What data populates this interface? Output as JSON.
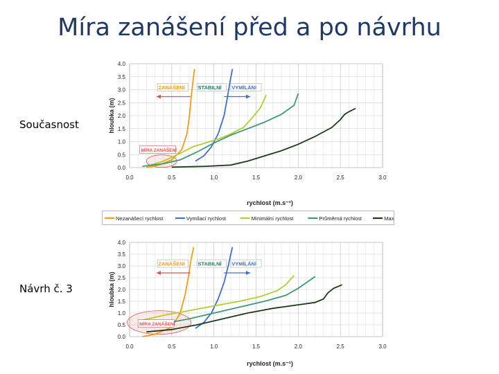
{
  "slide": {
    "title": "Míra zanášení před a po návrhu",
    "row1_label": "Současnost",
    "row2_label": "Návrh č. 3"
  },
  "colors": {
    "orange": "#f39c12",
    "blue": "#3a6fd8",
    "green": "#b5cc2e",
    "teal": "#3a9a72",
    "black": "#1a3a1a",
    "grid": "#c8c8c8",
    "zone": "#e05050"
  },
  "chart_data": [
    {
      "type": "line",
      "xlabel": "rychlost (m.s⁻¹)",
      "ylabel": "hloubka (m)",
      "xlim": [
        0,
        3.0
      ],
      "ylim": [
        0,
        4.0
      ],
      "x_ticks": [
        "0.0",
        "0.5",
        "1.0",
        "1.5",
        "2.0",
        "2.5",
        "3.0"
      ],
      "y_ticks": [
        "0.0",
        "0.5",
        "1.0",
        "1.5",
        "2.0",
        "2.5",
        "3.0",
        "3.5",
        "4.0"
      ],
      "grid": true,
      "annotations": {
        "zanaseni": "ZANÁŠENÍ",
        "stabilni": "STABILNÍ",
        "vymilani": "VYMÍLÁNÍ",
        "mira": "MÍRA ZANÁŠENÍ"
      },
      "series": [
        {
          "name": "Nezanášecí rychlost",
          "color_key": "orange",
          "points": [
            [
              0.2,
              0.0
            ],
            [
              0.35,
              0.1
            ],
            [
              0.5,
              0.3
            ],
            [
              0.62,
              0.7
            ],
            [
              0.68,
              1.3
            ],
            [
              0.71,
              2.0
            ],
            [
              0.73,
              2.7
            ],
            [
              0.75,
              3.3
            ],
            [
              0.77,
              3.8
            ]
          ]
        },
        {
          "name": "Vymílací rychlost",
          "color_key": "blue",
          "points": [
            [
              0.78,
              0.25
            ],
            [
              0.88,
              0.45
            ],
            [
              0.97,
              0.8
            ],
            [
              1.05,
              1.3
            ],
            [
              1.12,
              2.0
            ],
            [
              1.16,
              2.7
            ],
            [
              1.19,
              3.3
            ],
            [
              1.22,
              3.8
            ]
          ]
        },
        {
          "name": "Minimální rychlost",
          "color_key": "green",
          "points": [
            [
              0.2,
              0.05
            ],
            [
              0.4,
              0.25
            ],
            [
              0.6,
              0.55
            ],
            [
              0.75,
              0.8
            ],
            [
              0.9,
              0.95
            ],
            [
              1.05,
              1.1
            ],
            [
              1.2,
              1.3
            ],
            [
              1.35,
              1.55
            ],
            [
              1.45,
              1.9
            ],
            [
              1.55,
              2.3
            ],
            [
              1.62,
              2.8
            ]
          ]
        },
        {
          "name": "Průměrná rychlost",
          "color_key": "teal",
          "points": [
            [
              0.15,
              0.05
            ],
            [
              0.4,
              0.15
            ],
            [
              0.6,
              0.3
            ],
            [
              0.8,
              0.6
            ],
            [
              1.0,
              0.95
            ],
            [
              1.2,
              1.25
            ],
            [
              1.4,
              1.5
            ],
            [
              1.6,
              1.75
            ],
            [
              1.8,
              2.05
            ],
            [
              1.95,
              2.4
            ],
            [
              2.0,
              2.85
            ]
          ]
        },
        {
          "name": "Maximální rychlost",
          "color_key": "black",
          "points": [
            [
              0.5,
              0.02
            ],
            [
              0.9,
              0.05
            ],
            [
              1.2,
              0.1
            ],
            [
              1.4,
              0.25
            ],
            [
              1.6,
              0.45
            ],
            [
              1.8,
              0.65
            ],
            [
              2.0,
              0.9
            ],
            [
              2.2,
              1.2
            ],
            [
              2.4,
              1.55
            ],
            [
              2.5,
              1.85
            ],
            [
              2.55,
              2.05
            ],
            [
              2.6,
              2.15
            ],
            [
              2.68,
              2.28
            ]
          ]
        }
      ]
    },
    {
      "type": "line",
      "xlabel": "rychlost (m.s⁻¹)",
      "ylabel": "hloubka (m)",
      "xlim": [
        0,
        3.0
      ],
      "ylim": [
        0,
        4.0
      ],
      "x_ticks": [
        "0.0",
        "0.5",
        "1.0",
        "1.5",
        "2.0",
        "2.5",
        "3.0"
      ],
      "y_ticks": [
        "0.0",
        "0.5",
        "1.0",
        "1.5",
        "2.0",
        "2.5",
        "3.0",
        "3.5",
        "4.0"
      ],
      "grid": true,
      "annotations": {
        "zanaseni": "ZANÁŠENÍ",
        "stabilni": "STABILNÍ",
        "vymilani": "VYMÍLÁNÍ",
        "mira": "MÍRA ZANÁŠENÍ"
      },
      "series": [
        {
          "name": "Nezanášecí rychlost",
          "color_key": "orange",
          "points": [
            [
              0.15,
              0.0
            ],
            [
              0.3,
              0.1
            ],
            [
              0.5,
              0.4
            ],
            [
              0.6,
              1.0
            ],
            [
              0.66,
              1.8
            ],
            [
              0.7,
              2.6
            ],
            [
              0.73,
              3.3
            ],
            [
              0.76,
              3.8
            ]
          ]
        },
        {
          "name": "Vymílací rychlost",
          "color_key": "blue",
          "points": [
            [
              0.78,
              0.35
            ],
            [
              0.88,
              0.6
            ],
            [
              0.97,
              1.0
            ],
            [
              1.05,
              1.6
            ],
            [
              1.12,
              2.3
            ],
            [
              1.17,
              3.0
            ],
            [
              1.2,
              3.5
            ],
            [
              1.22,
              3.8
            ]
          ]
        },
        {
          "name": "Minimální rychlost",
          "color_key": "green",
          "points": [
            [
              0.15,
              0.7
            ],
            [
              0.4,
              0.9
            ],
            [
              0.7,
              1.1
            ],
            [
              1.0,
              1.3
            ],
            [
              1.3,
              1.5
            ],
            [
              1.55,
              1.7
            ],
            [
              1.75,
              1.95
            ],
            [
              1.85,
              2.2
            ],
            [
              1.95,
              2.6
            ]
          ]
        },
        {
          "name": "Průměrná rychlost",
          "color_key": "teal",
          "points": [
            [
              0.15,
              0.45
            ],
            [
              0.4,
              0.55
            ],
            [
              0.7,
              0.75
            ],
            [
              1.0,
              1.0
            ],
            [
              1.3,
              1.25
            ],
            [
              1.6,
              1.5
            ],
            [
              1.85,
              1.75
            ],
            [
              2.0,
              2.05
            ],
            [
              2.1,
              2.3
            ],
            [
              2.2,
              2.55
            ]
          ]
        },
        {
          "name": "Maximální rychlost",
          "color_key": "black",
          "points": [
            [
              0.2,
              0.2
            ],
            [
              0.5,
              0.3
            ],
            [
              0.8,
              0.5
            ],
            [
              1.1,
              0.75
            ],
            [
              1.4,
              1.0
            ],
            [
              1.7,
              1.2
            ],
            [
              2.0,
              1.35
            ],
            [
              2.2,
              1.45
            ],
            [
              2.3,
              1.6
            ],
            [
              2.35,
              1.85
            ],
            [
              2.42,
              2.05
            ],
            [
              2.52,
              2.2
            ]
          ]
        }
      ]
    }
  ]
}
